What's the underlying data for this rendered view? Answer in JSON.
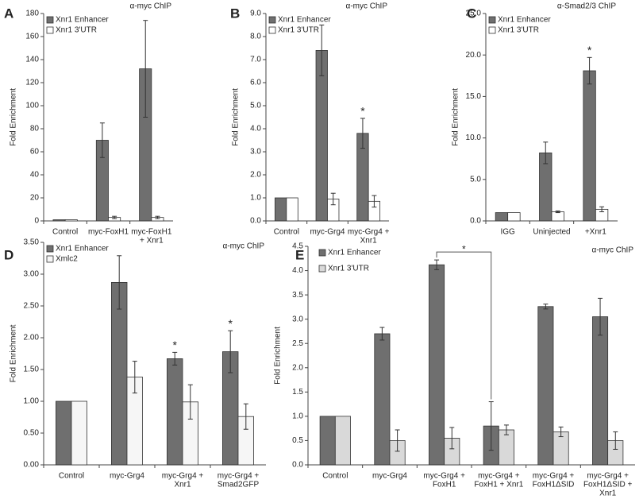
{
  "chart_data": [
    {
      "type": "bar",
      "panel": "A",
      "title": "α-myc ChIP",
      "y_label": "Fold Enrichment",
      "categories": [
        [
          "Control"
        ],
        [
          "myc-FoxH1"
        ],
        [
          "myc-FoxH1",
          "+ Xnr1"
        ]
      ],
      "series": [
        {
          "name": "Xnr1 Enhancer",
          "color": "#6f6f6f",
          "values": [
            1,
            70,
            132
          ],
          "errors": [
            0,
            15,
            42
          ]
        },
        {
          "name": "Xnr1 3'UTR",
          "color": "#ffffff",
          "values": [
            1,
            3,
            3
          ],
          "errors": [
            0,
            1,
            1
          ]
        }
      ],
      "ylim": [
        0,
        180
      ],
      "yticks": [
        0,
        20,
        40,
        60,
        80,
        100,
        120,
        140,
        160,
        180
      ],
      "annotations": []
    },
    {
      "type": "bar",
      "panel": "B",
      "title": "α-myc ChIP",
      "y_label": "Fold Enrichment",
      "categories": [
        [
          "Control"
        ],
        [
          "myc-Grg4"
        ],
        [
          "myc-Grg4 +",
          "Xnr1"
        ]
      ],
      "series": [
        {
          "name": "Xnr1 Enhancer",
          "color": "#6f6f6f",
          "values": [
            1,
            7.4,
            3.8
          ],
          "errors": [
            0,
            1.1,
            0.65
          ]
        },
        {
          "name": "Xnr1 3'UTR",
          "color": "#ffffff",
          "values": [
            1,
            0.95,
            0.85
          ],
          "errors": [
            0,
            0.25,
            0.25
          ]
        }
      ],
      "ylim": [
        0,
        9
      ],
      "yticks": [
        {
          "value": 0,
          "label": "0.0"
        },
        {
          "value": 1,
          "label": "1.0"
        },
        {
          "value": 2,
          "label": "2.0"
        },
        {
          "value": 3,
          "label": "3.0"
        },
        {
          "value": 4,
          "label": "4.0"
        },
        {
          "value": 5,
          "label": "5.0"
        },
        {
          "value": 6,
          "label": "6.0"
        },
        {
          "value": 7,
          "label": "7.0"
        },
        {
          "value": 8,
          "label": "8.0"
        },
        {
          "value": 9,
          "label": "9.0"
        }
      ],
      "annotations": [
        {
          "text": "*",
          "at": 2
        }
      ]
    },
    {
      "type": "bar",
      "panel": "C",
      "title": "α-Smad2/3 ChIP",
      "y_label": "Fold Enrichment",
      "categories": [
        [
          "IGG"
        ],
        [
          "Uninjected"
        ],
        [
          "+Xnr1"
        ]
      ],
      "series": [
        {
          "name": "Xnr1 Enhancer",
          "color": "#6f6f6f",
          "values": [
            1,
            8.2,
            18.1
          ],
          "errors": [
            0,
            1.3,
            1.6
          ]
        },
        {
          "name": "Xnr1 3'UTR",
          "color": "#ffffff",
          "values": [
            1,
            1.1,
            1.4
          ],
          "errors": [
            0,
            0.1,
            0.3
          ]
        }
      ],
      "ylim": [
        0,
        25
      ],
      "yticks": [
        {
          "value": 0,
          "label": "0.0"
        },
        {
          "value": 5,
          "label": "5.0"
        },
        {
          "value": 10,
          "label": "10.0"
        },
        {
          "value": 15,
          "label": "15.0"
        },
        {
          "value": 20,
          "label": "20.0"
        },
        {
          "value": 25,
          "label": "25.0"
        }
      ],
      "annotations": [
        {
          "text": "*",
          "at": 2
        }
      ]
    },
    {
      "type": "bar",
      "panel": "D",
      "title": "α-myc ChIP",
      "y_label": "Fold Enrichment",
      "categories": [
        [
          "Control"
        ],
        [
          "myc-Grg4"
        ],
        [
          "myc-Grg4 +",
          "Xnr1"
        ],
        [
          "myc-Grg4 +",
          "Smad2GFP"
        ]
      ],
      "series": [
        {
          "name": "Xnr1 Enhancer",
          "color": "#6f6f6f",
          "values": [
            1,
            2.87,
            1.67,
            1.78
          ],
          "errors": [
            0,
            0.42,
            0.1,
            0.33
          ]
        },
        {
          "name": "Xmlc2",
          "color": "#f6f6f6",
          "values": [
            1,
            1.38,
            0.99,
            0.76
          ],
          "errors": [
            0,
            0.25,
            0.27,
            0.2
          ]
        }
      ],
      "ylim": [
        0,
        3.5
      ],
      "yticks": [
        {
          "value": 0,
          "label": "0.00"
        },
        {
          "value": 0.5,
          "label": "0.50"
        },
        {
          "value": 1,
          "label": "1.00"
        },
        {
          "value": 1.5,
          "label": "1.50"
        },
        {
          "value": 2,
          "label": "2.00"
        },
        {
          "value": 2.5,
          "label": "2.50"
        },
        {
          "value": 3,
          "label": "3.00"
        },
        {
          "value": 3.5,
          "label": "3.50"
        }
      ],
      "annotations": [
        {
          "text": "*",
          "at": 2
        },
        {
          "text": "*",
          "at": 3
        }
      ]
    },
    {
      "type": "bar",
      "panel": "E",
      "title": "α-myc ChIP",
      "y_label": "Fold Enrichment",
      "categories": [
        [
          "Control"
        ],
        [
          "myc-Grg4"
        ],
        [
          "myc-Grg4 +",
          "FoxH1"
        ],
        [
          "myc-Grg4 +",
          "FoxH1 + Xnr1"
        ],
        [
          "myc-Grg4 +",
          "FoxH1ΔSID"
        ],
        [
          "myc-Grg4 +",
          "FoxH1ΔSID +",
          "Xnr1"
        ]
      ],
      "series": [
        {
          "name": "Xnr1 Enhancer",
          "color": "#6f6f6f",
          "values": [
            1,
            2.7,
            4.12,
            0.8,
            3.26,
            3.05
          ],
          "errors": [
            0,
            0.13,
            0.1,
            0.5,
            0.05,
            0.38
          ]
        },
        {
          "name": "Xnr1 3'UTR",
          "color": "#d9d9d9",
          "values": [
            1,
            0.5,
            0.55,
            0.72,
            0.68,
            0.5
          ],
          "errors": [
            0,
            0.22,
            0.22,
            0.1,
            0.1,
            0.18
          ]
        }
      ],
      "ylim": [
        0,
        4.5
      ],
      "yticks": [
        {
          "value": 0,
          "label": "0.0"
        },
        0.5,
        {
          "value": 1,
          "label": "1.0"
        },
        1.5,
        {
          "value": 2,
          "label": "2.0"
        },
        2.5,
        {
          "value": 3,
          "label": "3.0"
        },
        3.5,
        {
          "value": 4,
          "label": "4.0"
        },
        4.5
      ],
      "brackets": [
        {
          "text": "*",
          "from": 2,
          "to": 3
        }
      ]
    }
  ]
}
